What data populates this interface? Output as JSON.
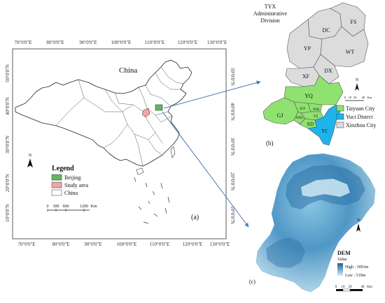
{
  "panel_a": {
    "title": "China",
    "caption": "(a)",
    "top_lon_labels": [
      "70°0'0\"E",
      "80°0'0\"E",
      "90°0'0\"E",
      "100°0'0\"E",
      "110°0'0\"E",
      "120°0'0\"E",
      "130°0'0\"E"
    ],
    "bottom_lon_labels": [
      "70°0'0\"E",
      "80°0'0\"E",
      "90°0'0\"E",
      "100°0'0\"E",
      "110°0'0\"E",
      "120°0'0\"E",
      "130°0'0\"E"
    ],
    "lat_labels": [
      "50°0'0\"N",
      "40°0'0\"N",
      "30°0'0\"N",
      "20°0'0\"N",
      "10°0'0\"N"
    ],
    "north_label": "N",
    "legend": {
      "title": "Legend",
      "items": [
        {
          "label": "Beijing",
          "color": "#5fb760"
        },
        {
          "label": "Study area",
          "color": "#f3a5a5"
        },
        {
          "label": "China",
          "color": "#ffffff"
        }
      ]
    },
    "scale_labels": [
      "0",
      "300",
      "600",
      "1200",
      "Km"
    ]
  },
  "panel_b": {
    "title_line1": "TYX",
    "title_line2": "Administrative",
    "title_line3": "Division",
    "caption": "(b)",
    "north_label": "N",
    "districts": [
      "DC",
      "FS",
      "YP",
      "WT",
      "XF",
      "DX",
      "YQ",
      "GJ",
      "JCP",
      "XHL",
      "WBL",
      "YZ",
      "XD",
      "YC"
    ],
    "legend": [
      {
        "label": "Taiyuan City",
        "color": "#8fe26f"
      },
      {
        "label": "Yuci Distrct",
        "color": "#1eb3ea"
      },
      {
        "label": "Xinzhou City",
        "color": "#dcdcdc"
      }
    ],
    "scale_labels": [
      "0",
      "10",
      "20",
      "40",
      "Km"
    ]
  },
  "panel_c": {
    "caption": "(c)",
    "north_label": "N",
    "dem_title": "DEM",
    "dem_subtitle": "Value",
    "high_label": "High : 3091m",
    "low_label": "Low : 519m",
    "high_color": "#1d5f94",
    "low_color": "#d6eef6",
    "scale_labels": [
      "0",
      "10",
      "20",
      "40",
      "Km"
    ]
  }
}
